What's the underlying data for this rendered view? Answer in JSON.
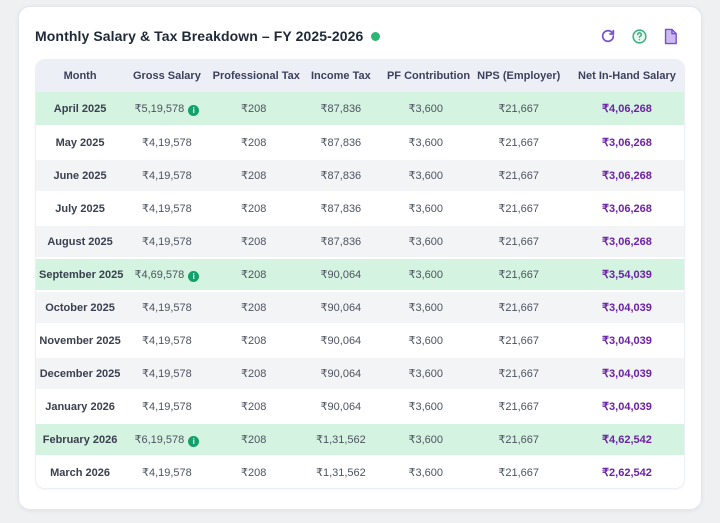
{
  "header": {
    "title": "Monthly Salary & Tax Breakdown – FY 2025-2026",
    "status_dot_color": "#2bb673",
    "icons": [
      "refresh-icon",
      "help-icon",
      "document-icon"
    ]
  },
  "colors": {
    "highlight_row_bg": "#d5f3e1",
    "stripe_row_bg": "#f3f4f6",
    "header_bg": "#edeff6",
    "net_salary_text": "#6b21a8",
    "info_icon": "#12a06b",
    "accent_purple": "#7a52c7",
    "accent_green": "#3aa981"
  },
  "table": {
    "columns": [
      "Month",
      "Gross Salary",
      "Professional Tax",
      "Income Tax",
      "PF Contribution",
      "NPS (Employer)",
      "Net In-Hand Salary"
    ],
    "rows": [
      {
        "month": "April 2025",
        "gross": "₹5,19,578",
        "has_info": true,
        "prof_tax": "₹208",
        "income_tax": "₹87,836",
        "pf": "₹3,600",
        "nps": "₹21,667",
        "net": "₹4,06,268",
        "highlight": true
      },
      {
        "month": "May 2025",
        "gross": "₹4,19,578",
        "has_info": false,
        "prof_tax": "₹208",
        "income_tax": "₹87,836",
        "pf": "₹3,600",
        "nps": "₹21,667",
        "net": "₹3,06,268",
        "highlight": false
      },
      {
        "month": "June 2025",
        "gross": "₹4,19,578",
        "has_info": false,
        "prof_tax": "₹208",
        "income_tax": "₹87,836",
        "pf": "₹3,600",
        "nps": "₹21,667",
        "net": "₹3,06,268",
        "highlight": false
      },
      {
        "month": "July 2025",
        "gross": "₹4,19,578",
        "has_info": false,
        "prof_tax": "₹208",
        "income_tax": "₹87,836",
        "pf": "₹3,600",
        "nps": "₹21,667",
        "net": "₹3,06,268",
        "highlight": false
      },
      {
        "month": "August 2025",
        "gross": "₹4,19,578",
        "has_info": false,
        "prof_tax": "₹208",
        "income_tax": "₹87,836",
        "pf": "₹3,600",
        "nps": "₹21,667",
        "net": "₹3,06,268",
        "highlight": false
      },
      {
        "month": "September 2025",
        "gross": "₹4,69,578",
        "has_info": true,
        "prof_tax": "₹208",
        "income_tax": "₹90,064",
        "pf": "₹3,600",
        "nps": "₹21,667",
        "net": "₹3,54,039",
        "highlight": true
      },
      {
        "month": "October 2025",
        "gross": "₹4,19,578",
        "has_info": false,
        "prof_tax": "₹208",
        "income_tax": "₹90,064",
        "pf": "₹3,600",
        "nps": "₹21,667",
        "net": "₹3,04,039",
        "highlight": false
      },
      {
        "month": "November 2025",
        "gross": "₹4,19,578",
        "has_info": false,
        "prof_tax": "₹208",
        "income_tax": "₹90,064",
        "pf": "₹3,600",
        "nps": "₹21,667",
        "net": "₹3,04,039",
        "highlight": false
      },
      {
        "month": "December 2025",
        "gross": "₹4,19,578",
        "has_info": false,
        "prof_tax": "₹208",
        "income_tax": "₹90,064",
        "pf": "₹3,600",
        "nps": "₹21,667",
        "net": "₹3,04,039",
        "highlight": false
      },
      {
        "month": "January 2026",
        "gross": "₹4,19,578",
        "has_info": false,
        "prof_tax": "₹208",
        "income_tax": "₹90,064",
        "pf": "₹3,600",
        "nps": "₹21,667",
        "net": "₹3,04,039",
        "highlight": false
      },
      {
        "month": "February 2026",
        "gross": "₹6,19,578",
        "has_info": true,
        "prof_tax": "₹208",
        "income_tax": "₹1,31,562",
        "pf": "₹3,600",
        "nps": "₹21,667",
        "net": "₹4,62,542",
        "highlight": true
      },
      {
        "month": "March 2026",
        "gross": "₹4,19,578",
        "has_info": false,
        "prof_tax": "₹208",
        "income_tax": "₹1,31,562",
        "pf": "₹3,600",
        "nps": "₹21,667",
        "net": "₹2,62,542",
        "highlight": false
      }
    ]
  }
}
